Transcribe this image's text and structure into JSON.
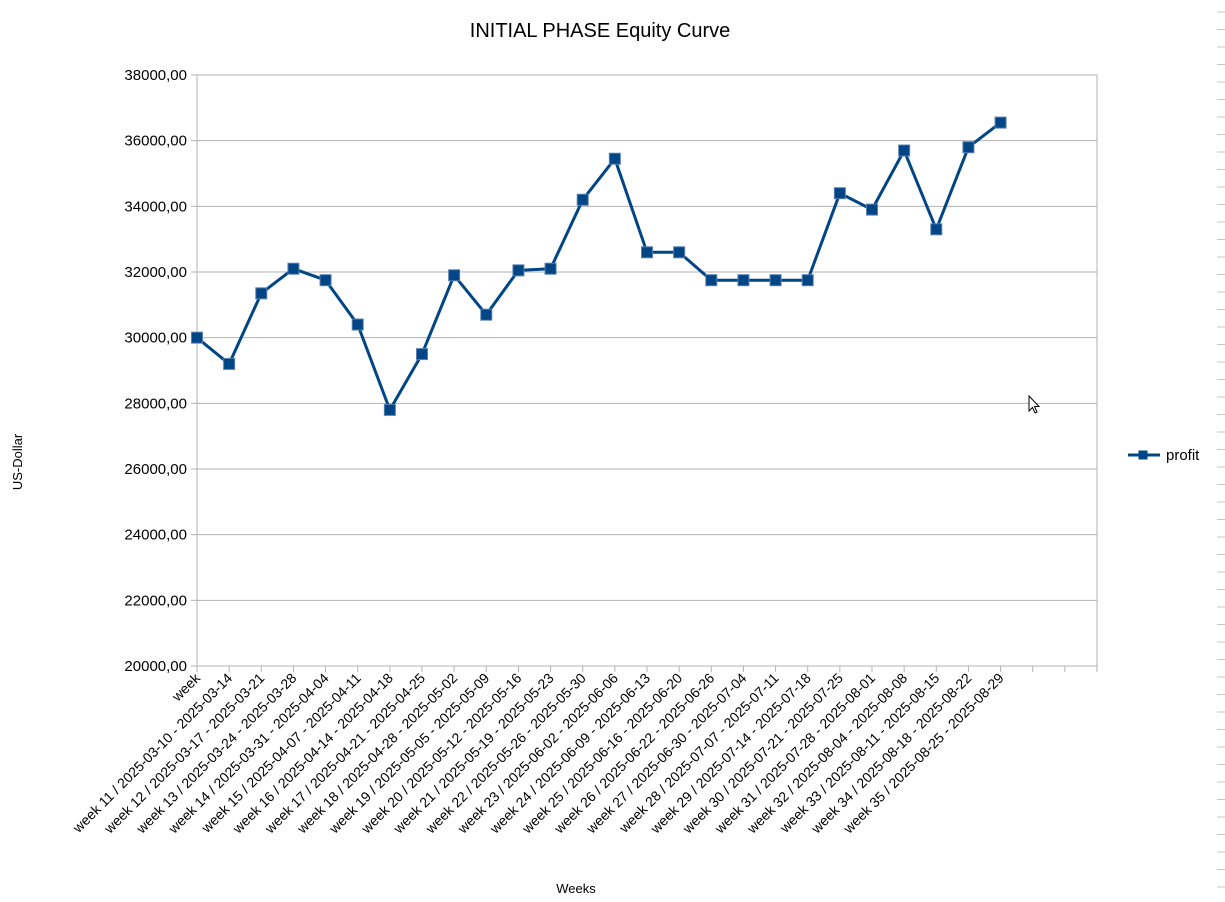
{
  "chart_data": {
    "type": "line",
    "title": "INITIAL PHASE Equity Curve",
    "xlabel": "Weeks",
    "ylabel": "US-Dollar",
    "ylim": [
      20000,
      38000
    ],
    "ytick_step": 2000,
    "ytick_labels": [
      "20000,00",
      "22000,00",
      "24000,00",
      "26000,00",
      "28000,00",
      "30000,00",
      "32000,00",
      "34000,00",
      "36000,00",
      "38000,00"
    ],
    "grid": true,
    "legend_position": "right",
    "categories": [
      "week",
      "week 11 / 2025-03-10 - 2025-03-14",
      "week 12 / 2025-03-17 - 2025-03-21",
      "week 13 / 2025-03-24 - 2025-03-28",
      "week 14 / 2025-03-31 - 2025-04-04",
      "week 15 / 2025-04-07 - 2025-04-11",
      "week 16 / 2025-04-14 - 2025-04-18",
      "week 17 / 2025-04-21 - 2025-04-25",
      "week 18 / 2025-04-28 - 2025-05-02",
      "week 19 / 2025-05-05 - 2025-05-09",
      "week 20 / 2025-05-12 - 2025-05-16",
      "week 21 / 2025-05-19 - 2025-05-23",
      "week 22 / 2025-05-26 - 2025-05-30",
      "week 23 / 2025-06-02 - 2025-06-06",
      "week 24 / 2025-06-09 - 2025-06-13",
      "week 25 / 2025-06-16 - 2025-06-20",
      "week 26 / 2025-06-22 - 2025-06-26",
      "week 27 / 2025-06-30 - 2025-07-04",
      "week 28 / 2025-07-07 - 2025-07-11",
      "week 29 / 2025-07-14 - 2025-07-18",
      "week 30 / 2025-07-21 - 2025-07-25",
      "week 31 / 2025-07-28 - 2025-08-01",
      "week 32 / 2025-08-04 - 2025-08-08",
      "week 33 / 2025-08-11 - 2025-08-15",
      "week 34 / 2025-08-18 - 2025-08-22",
      "week 35 / 2025-08-25 - 2025-08-29"
    ],
    "extra_empty_slots": 3,
    "series": [
      {
        "name": "profit",
        "color": "#004586",
        "marker": "square",
        "values": [
          30000,
          29200,
          31350,
          32100,
          31750,
          30400,
          27800,
          29500,
          31900,
          30700,
          32050,
          32100,
          34200,
          35450,
          32600,
          32600,
          31750,
          31750,
          31750,
          31750,
          34400,
          33900,
          35700,
          33300,
          35800,
          36550
        ]
      }
    ]
  }
}
